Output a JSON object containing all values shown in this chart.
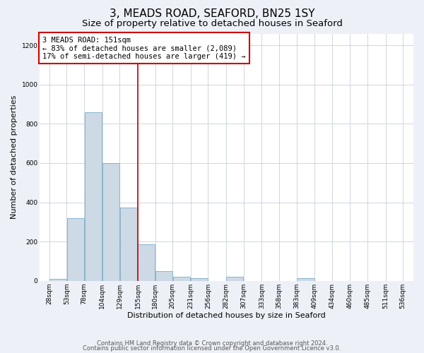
{
  "title": "3, MEADS ROAD, SEAFORD, BN25 1SY",
  "subtitle": "Size of property relative to detached houses in Seaford",
  "xlabel": "Distribution of detached houses by size in Seaford",
  "ylabel": "Number of detached properties",
  "bar_edges": [
    28,
    53,
    78,
    104,
    129,
    155,
    180,
    205,
    231,
    256,
    282,
    307,
    333,
    358,
    383,
    409,
    434,
    460,
    485,
    511,
    536
  ],
  "bar_heights": [
    10,
    320,
    860,
    600,
    375,
    185,
    48,
    20,
    15,
    0,
    20,
    0,
    0,
    0,
    15,
    0,
    0,
    0,
    0,
    0
  ],
  "bar_color": "#cdd9e5",
  "bar_edgecolor": "#7aaec8",
  "vline_x": 155,
  "vline_color": "#cc0000",
  "annotation_text": "3 MEADS ROAD: 151sqm\n← 83% of detached houses are smaller (2,089)\n17% of semi-detached houses are larger (419) →",
  "annotation_box_edgecolor": "#cc0000",
  "annotation_box_facecolor": "#ffffff",
  "ylim": [
    0,
    1260
  ],
  "yticks": [
    0,
    200,
    400,
    600,
    800,
    1000,
    1200
  ],
  "tick_labels": [
    "28sqm",
    "53sqm",
    "78sqm",
    "104sqm",
    "129sqm",
    "155sqm",
    "180sqm",
    "205sqm",
    "231sqm",
    "256sqm",
    "282sqm",
    "307sqm",
    "333sqm",
    "358sqm",
    "383sqm",
    "409sqm",
    "434sqm",
    "460sqm",
    "485sqm",
    "511sqm",
    "536sqm"
  ],
  "footer_line1": "Contains HM Land Registry data © Crown copyright and database right 2024.",
  "footer_line2": "Contains public sector information licensed under the Open Government Licence v3.0.",
  "background_color": "#edf1f7",
  "plot_background_color": "#ffffff",
  "grid_color": "#c8d0dc",
  "title_fontsize": 11,
  "subtitle_fontsize": 9.5,
  "axis_label_fontsize": 8,
  "tick_fontsize": 6.5,
  "annotation_fontsize": 7.5,
  "footer_fontsize": 6
}
